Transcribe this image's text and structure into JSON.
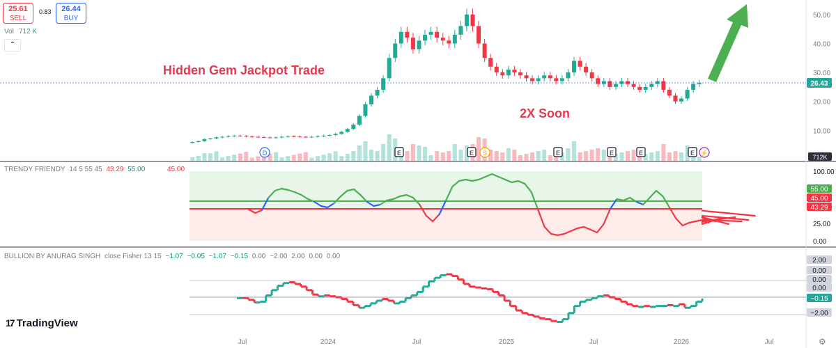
{
  "header": {
    "sell_price": "25.61",
    "sell_label": "SELL",
    "spread": "0.83",
    "buy_price": "26.44",
    "buy_label": "BUY",
    "vol_label": "Vol",
    "vol_value": "712 K",
    "collapse_icon": "chevron-up-icon"
  },
  "annotations": {
    "title_text": "Hidden Gem Jackpot Trade",
    "soon_text": "2X Soon"
  },
  "indicator1": {
    "name": "TRENDY FRIENDY",
    "params": "14 5 55 45",
    "values": [
      "43.29",
      "55.00",
      "45.00"
    ]
  },
  "indicator2": {
    "name": "BULLION BY ANURAG SINGH",
    "params": "close Fisher 13 15",
    "values": [
      "−1.07",
      "−0.05",
      "−1.07",
      "−0.15",
      "0.00",
      "−2.00",
      "2.00",
      "0.00",
      "0.00"
    ]
  },
  "logo": {
    "text": "TradingView",
    "mark": "17"
  },
  "colors": {
    "up": "#22ab94",
    "down": "#f23645",
    "arrow": "#4caf50",
    "annotation": "#e53950",
    "blue": "#2962ff"
  },
  "chart_data": [
    {
      "type": "candlestick",
      "title": "",
      "x_tick_labels": [
        "Jul",
        "2024",
        "Jul",
        "2025",
        "Jul",
        "2026",
        "Jul"
      ],
      "y_tick_labels": [
        "10.00",
        "20.00",
        "30.00",
        "40.00",
        "50.00"
      ],
      "ylim": [
        0,
        55
      ],
      "last_price": "26.43",
      "volume_last": "712K",
      "event_markers": [
        "D",
        "E",
        "E",
        "S",
        "E",
        "E",
        "E",
        "E",
        "⚡"
      ],
      "close_series": [
        6.0,
        6.3,
        7.0,
        7.2,
        7.6,
        7.8,
        8.0,
        8.2,
        8.1,
        7.9,
        7.8,
        7.7,
        7.6,
        7.5,
        7.6,
        7.8,
        8.0,
        7.9,
        7.8,
        7.7,
        7.8,
        8.0,
        8.2,
        8.4,
        8.8,
        9.5,
        10.5,
        12.0,
        15.0,
        19.0,
        22.0,
        24.0,
        28.0,
        35.0,
        40.0,
        44.0,
        42.0,
        38.0,
        41.0,
        43.0,
        44.0,
        42.0,
        41.0,
        40.0,
        43.0,
        46.0,
        50.0,
        46.0,
        40.0,
        35.0,
        32.0,
        30.0,
        29.0,
        31.0,
        30.0,
        29.0,
        28.0,
        27.0,
        28.0,
        29.0,
        28.0,
        27.0,
        28.0,
        30.0,
        34.0,
        32.0,
        30.0,
        28.0,
        26.0,
        27.0,
        25.0,
        26.0,
        27.0,
        26.0,
        25.0,
        24.0,
        25.0,
        26.0,
        27.0,
        24.0,
        22.0,
        20.0,
        21.0,
        24.0,
        26.0,
        26.43
      ]
    },
    {
      "type": "line",
      "title": "TRENDY FRIENDY",
      "y_tick_labels": [
        "0.00",
        "25.00",
        "100.00"
      ],
      "ylim": [
        0,
        100
      ],
      "upper_level": 55.0,
      "lower_level": 45.0,
      "last_value": 43.29,
      "series": [
        {
          "values": [
            45,
            40,
            44,
            62,
            72,
            75,
            73,
            70,
            66,
            60,
            56,
            50,
            48,
            54,
            64,
            72,
            74,
            66,
            56,
            50,
            52,
            58,
            60,
            64,
            66,
            62,
            52,
            36,
            28,
            38,
            58,
            78,
            86,
            88,
            86,
            88,
            92,
            96,
            92,
            88,
            84,
            86,
            82,
            70,
            45,
            20,
            10,
            8,
            10,
            14,
            18,
            20,
            16,
            12,
            24,
            46,
            60,
            58,
            62,
            56,
            52,
            62,
            72,
            64,
            48,
            32,
            22,
            26,
            28,
            30,
            26,
            28,
            33,
            24,
            34,
            28,
            30,
            36,
            43.29
          ]
        }
      ]
    },
    {
      "type": "step",
      "title": "BULLION BY ANURAG SINGH",
      "y_tick_labels": [
        "2.00",
        "0.00",
        "0.00",
        "0.00",
        "−2.00"
      ],
      "ylim": [
        -3,
        3
      ],
      "last_value": -0.15,
      "series": [
        {
          "values": [
            -0.1,
            -0.3,
            -0.6,
            -0.5,
            0.2,
            0.8,
            1.3,
            1.6,
            1.7,
            1.5,
            1.2,
            0.8,
            0.3,
            0.1,
            0.2,
            0.1,
            0.0,
            -0.2,
            -0.5,
            -0.9,
            -1.2,
            -1.0,
            -0.7,
            -0.4,
            -0.2,
            -0.4,
            -0.7,
            -0.5,
            -0.1,
            0.2,
            0.6,
            1.2,
            1.8,
            2.2,
            2.5,
            2.6,
            2.4,
            2.0,
            1.5,
            1.2,
            1.1,
            1.0,
            0.9,
            0.6,
            0.2,
            -0.4,
            -1.0,
            -1.5,
            -1.8,
            -2.0,
            -2.2,
            -2.4,
            -2.5,
            -2.7,
            -2.8,
            -2.5,
            -1.8,
            -1.0,
            -0.5,
            -0.3,
            -0.1,
            0.1,
            0.2,
            0.0,
            -0.2,
            -0.5,
            -0.8,
            -1.0,
            -1.1,
            -1.0,
            -1.1,
            -1.0,
            -1.0,
            -0.9,
            -1.0,
            -0.8,
            -1.2,
            -1.0,
            -0.5,
            -0.15
          ]
        }
      ]
    }
  ]
}
